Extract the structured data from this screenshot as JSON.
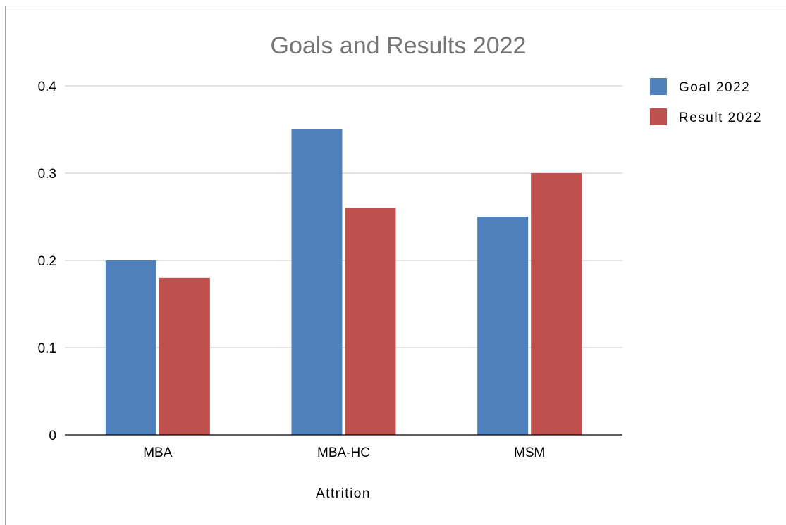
{
  "chart_data": {
    "type": "bar",
    "title": "Goals and Results 2022",
    "xlabel": "Attrition",
    "ylabel": "",
    "categories": [
      "MBA",
      "MBA-HC",
      "MSM"
    ],
    "series": [
      {
        "name": "Goal 2022",
        "values": [
          0.2,
          0.35,
          0.25
        ],
        "color": "#4f81bd"
      },
      {
        "name": "Result 2022",
        "values": [
          0.18,
          0.26,
          0.3
        ],
        "color": "#c0504d"
      }
    ],
    "ylim": [
      0,
      0.4
    ],
    "yticks": [
      "0",
      "0.1",
      "0.2",
      "0.3",
      "0.4"
    ],
    "grid": true,
    "legend_position": "right"
  }
}
